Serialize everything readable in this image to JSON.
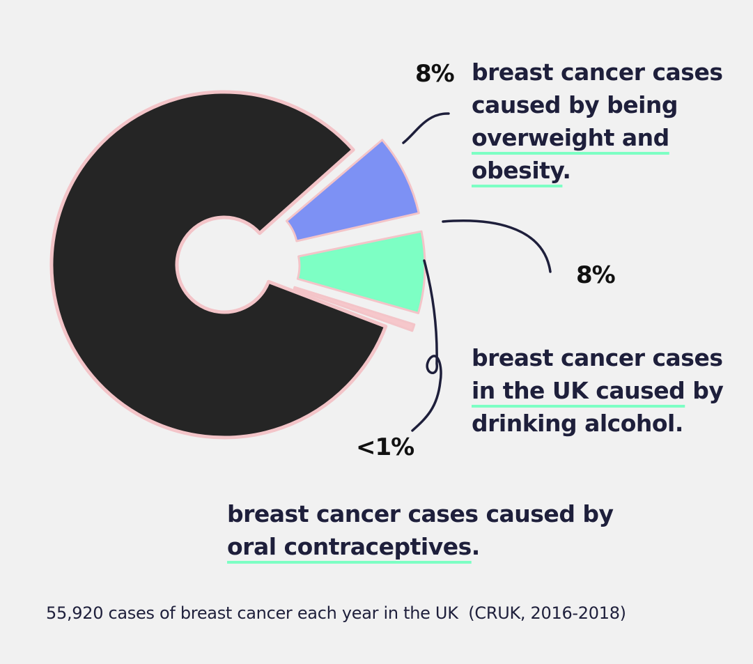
{
  "chart_data": {
    "type": "pie",
    "variant": "exploded-donut",
    "slices": [
      {
        "label": "overweight and obesity",
        "value": 8,
        "display": "8%",
        "color": "#7d91f4"
      },
      {
        "label": "drinking alcohol",
        "value": 8,
        "display": "8%",
        "color": "#7dffc4"
      },
      {
        "label": "oral contraceptives",
        "value": 1,
        "display": "<1%",
        "color": "#f6c7cb"
      },
      {
        "label": "other",
        "value": 83,
        "color": "#252525"
      }
    ],
    "outline_color": "#f3c4c8",
    "highlight_color": "#7dffc4",
    "text_color": "#1e1f3b"
  },
  "labels": {
    "obesity_pct": "8%",
    "alcohol_pct": "8%",
    "contraceptive_pct": "<1%"
  },
  "annotations": {
    "obesity": {
      "line1": "breast cancer cases",
      "line2": "caused by being",
      "line3_ul": "overweight and",
      "line4_ul": "obesity",
      "line4_rest": "."
    },
    "alcohol": {
      "line1": "breast cancer cases",
      "line2_ul": "in the UK caused",
      "line2_rest": " by",
      "line3": "drinking alcohol."
    },
    "contraceptive": {
      "line1": "breast cancer cases caused by",
      "line2_ul": "oral contraceptives",
      "line2_rest": "."
    }
  },
  "footer": {
    "source": "55,920 cases of breast cancer each year in the UK  (CRUK, 2016-2018)"
  }
}
